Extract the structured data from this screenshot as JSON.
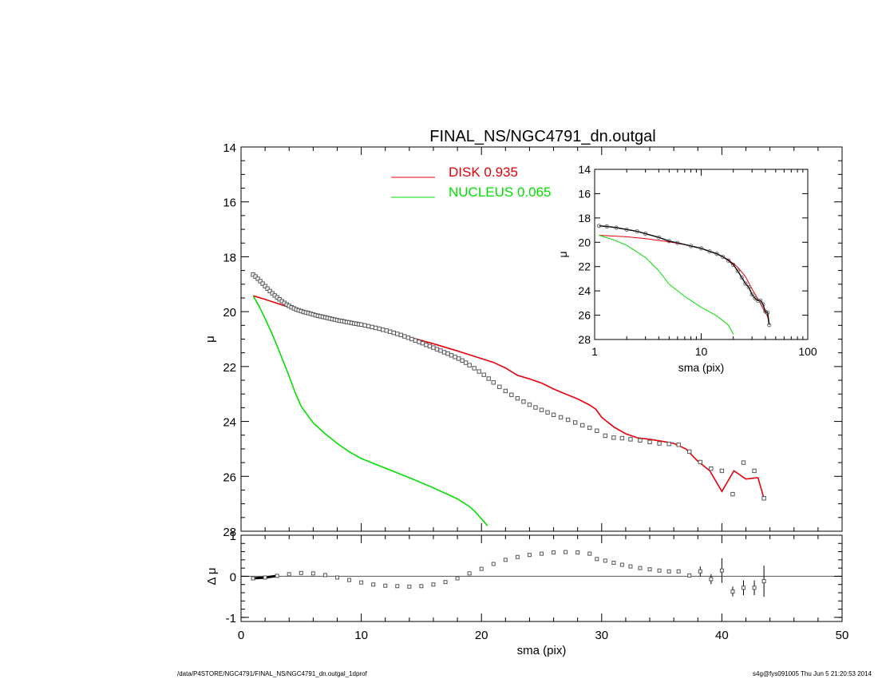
{
  "title": "FINAL_NS/NGC4791_dn.outgal",
  "footer_left": "/data/P4STORE/NGC4791/FINAL_NS/NGC4791_dn.outgal_1dprof",
  "footer_right": "s4g@fys091005  Thu Jun  5 21:20:53 2014",
  "colors": {
    "disk": "#e8000b",
    "nucleus": "#00e000",
    "data": "#555555",
    "axis": "#000000"
  },
  "legend": [
    {
      "label": "DISK  0.935",
      "color": "#e8000b"
    },
    {
      "label": "NUCLEUS  0.065",
      "color": "#00e000"
    }
  ],
  "chart_data": [
    {
      "id": "main",
      "type": "scatter",
      "ylabel": "μ",
      "xlim": [
        0,
        50
      ],
      "ylim": [
        14,
        28
      ],
      "y_inverted": true,
      "yticks": [
        "14",
        "16",
        "18",
        "20",
        "22",
        "24",
        "26",
        "28"
      ],
      "series": [
        {
          "name": "data",
          "x": [
            1.0,
            1.2,
            1.4,
            1.6,
            1.8,
            2.0,
            2.2,
            2.4,
            2.6,
            2.8,
            3.0,
            3.2,
            3.4,
            3.6,
            3.8,
            4.0,
            4.2,
            4.4,
            4.6,
            4.8,
            5.0,
            5.2,
            5.4,
            5.6,
            5.8,
            6.0,
            6.2,
            6.4,
            6.6,
            6.8,
            7.0,
            7.2,
            7.4,
            7.6,
            7.8,
            8.0,
            8.2,
            8.4,
            8.6,
            8.8,
            9.0,
            9.2,
            9.4,
            9.6,
            9.8,
            10.0,
            10.3,
            10.6,
            10.9,
            11.2,
            11.5,
            11.8,
            12.1,
            12.4,
            12.7,
            13.0,
            13.3,
            13.6,
            13.9,
            14.2,
            14.5,
            14.8,
            15.1,
            15.4,
            15.7,
            16.0,
            16.3,
            16.6,
            16.9,
            17.2,
            17.5,
            17.8,
            18.1,
            18.4,
            18.7,
            19.0,
            19.4,
            19.8,
            20.2,
            20.6,
            21.0,
            21.5,
            22.0,
            22.5,
            23.0,
            23.5,
            24.0,
            24.5,
            25.0,
            25.5,
            26.0,
            26.6,
            27.2,
            27.8,
            28.4,
            29.0,
            29.6,
            30.3,
            31.0,
            31.7,
            32.4,
            33.2,
            34.0,
            34.8,
            35.6,
            36.4,
            37.3,
            38.2,
            39.1,
            40.0,
            40.9,
            41.8,
            42.7,
            43.5
          ],
          "y": [
            18.65,
            18.72,
            18.8,
            18.89,
            18.98,
            19.07,
            19.16,
            19.25,
            19.33,
            19.41,
            19.48,
            19.55,
            19.62,
            19.68,
            19.74,
            19.79,
            19.84,
            19.88,
            19.92,
            19.95,
            19.98,
            20.01,
            20.03,
            20.05,
            20.08,
            20.1,
            20.13,
            20.15,
            20.17,
            20.19,
            20.21,
            20.23,
            20.25,
            20.27,
            20.29,
            20.31,
            20.33,
            20.34,
            20.36,
            20.38,
            20.39,
            20.41,
            20.43,
            20.44,
            20.46,
            20.47,
            20.5,
            20.53,
            20.56,
            20.59,
            20.62,
            20.66,
            20.69,
            20.73,
            20.77,
            20.81,
            20.85,
            20.9,
            20.95,
            21.0,
            21.05,
            21.1,
            21.15,
            21.21,
            21.26,
            21.31,
            21.37,
            21.42,
            21.48,
            21.53,
            21.59,
            21.65,
            21.71,
            21.78,
            21.86,
            21.95,
            22.06,
            22.18,
            22.3,
            22.44,
            22.58,
            22.74,
            22.89,
            23.03,
            23.16,
            23.28,
            23.39,
            23.49,
            23.58,
            23.67,
            23.76,
            23.85,
            23.94,
            24.04,
            24.14,
            24.23,
            24.34,
            24.52,
            24.59,
            24.61,
            24.65,
            24.69,
            24.75,
            24.8,
            24.82,
            24.85,
            25.1,
            25.48,
            25.72,
            25.8,
            26.65,
            25.5,
            25.8,
            26.8
          ]
        },
        {
          "name": "DISK  0.935",
          "x": [
            1.0,
            2.0,
            3.0,
            4.0,
            5.0,
            6.0,
            7.0,
            8.0,
            9.0,
            10.0,
            11.0,
            12.0,
            13.0,
            14.0,
            15.0,
            16.0,
            17.0,
            18.0,
            19.0,
            20.0,
            21.0,
            22.0,
            23.0,
            24.0,
            25.0,
            26.0,
            27.0,
            28.0,
            29.0,
            29.5,
            30.0,
            31.0,
            32.0,
            33.0,
            34.0,
            35.0,
            36.0,
            37.0,
            38.0,
            39.0,
            40.0,
            41.0,
            42.0,
            43.0,
            43.5
          ],
          "y": [
            19.42,
            19.55,
            19.7,
            19.84,
            19.96,
            20.08,
            20.2,
            20.3,
            20.4,
            20.5,
            20.6,
            20.71,
            20.82,
            20.93,
            21.05,
            21.17,
            21.3,
            21.43,
            21.57,
            21.71,
            21.85,
            22.05,
            22.32,
            22.45,
            22.6,
            22.82,
            23.0,
            23.18,
            23.4,
            23.55,
            23.85,
            24.2,
            24.45,
            24.6,
            24.65,
            24.72,
            24.8,
            25.0,
            25.45,
            25.8,
            26.55,
            25.8,
            26.1,
            26.05,
            26.8
          ]
        },
        {
          "name": "NUCLEUS  0.065",
          "x": [
            1.0,
            1.5,
            2.0,
            2.5,
            3.0,
            3.5,
            4.0,
            4.5,
            5.0,
            6.0,
            7.0,
            8.0,
            9.0,
            10.0,
            12.0,
            14.0,
            16.0,
            18.0,
            19.0,
            19.5,
            20.0,
            20.5
          ],
          "y": [
            19.42,
            19.8,
            20.25,
            20.72,
            21.25,
            21.8,
            22.35,
            22.95,
            23.45,
            24.05,
            24.45,
            24.8,
            25.1,
            25.35,
            25.7,
            26.05,
            26.42,
            26.82,
            27.1,
            27.3,
            27.55,
            27.8
          ]
        }
      ]
    },
    {
      "id": "residual",
      "type": "scatter",
      "xlabel": "sma (pix)",
      "ylabel": "Δ μ",
      "xlim": [
        0,
        50
      ],
      "ylim": [
        -1.1,
        1.0
      ],
      "xticks": [
        "0",
        "10",
        "20",
        "30",
        "40",
        "50"
      ],
      "yticks": [
        "1",
        "0",
        "-1"
      ],
      "series": [
        {
          "name": "residual",
          "x": [
            1.0,
            2.0,
            3.0,
            4.0,
            5.0,
            6.0,
            7.0,
            8.0,
            9.0,
            10.0,
            11.0,
            12.0,
            13.0,
            14.0,
            15.0,
            16.0,
            17.0,
            18.0,
            19.0,
            20.0,
            21.0,
            22.0,
            23.0,
            24.0,
            25.0,
            26.0,
            27.0,
            28.0,
            29.0,
            29.6,
            30.3,
            31.0,
            31.7,
            32.4,
            33.2,
            34.0,
            34.8,
            35.6,
            36.4,
            37.3,
            38.2,
            39.1,
            40.0,
            40.9,
            41.8,
            42.7,
            43.5
          ],
          "y": [
            -0.05,
            -0.03,
            0.01,
            0.05,
            0.08,
            0.07,
            0.03,
            -0.03,
            -0.09,
            -0.15,
            -0.2,
            -0.23,
            -0.24,
            -0.25,
            -0.24,
            -0.2,
            -0.14,
            -0.05,
            0.07,
            0.18,
            0.3,
            0.4,
            0.47,
            0.52,
            0.55,
            0.58,
            0.59,
            0.58,
            0.55,
            0.42,
            0.38,
            0.33,
            0.28,
            0.24,
            0.2,
            0.17,
            0.14,
            0.12,
            0.12,
            0.02,
            0.12,
            -0.07,
            0.14,
            -0.37,
            -0.28,
            -0.28,
            -0.12
          ],
          "yerr": [
            0,
            0,
            0,
            0,
            0,
            0,
            0,
            0,
            0,
            0,
            0,
            0,
            0,
            0,
            0,
            0,
            0,
            0,
            0,
            0,
            0,
            0,
            0,
            0,
            0,
            0,
            0,
            0,
            0,
            0,
            0,
            0,
            0,
            0,
            0,
            0,
            0,
            0,
            0,
            0,
            0.12,
            0.12,
            0.3,
            0.12,
            0.18,
            0.18,
            0.38
          ]
        }
      ]
    },
    {
      "id": "inset",
      "type": "line",
      "xscale": "log",
      "xlabel": "sma (pix)",
      "ylabel": "μ",
      "xlim": [
        1,
        100
      ],
      "ylim": [
        14,
        28
      ],
      "xticks": [
        "1",
        "10",
        "100"
      ],
      "yticks": [
        "14",
        "16",
        "18",
        "20",
        "22",
        "24",
        "26",
        "28"
      ],
      "series": [
        {
          "name": "data",
          "x": [
            1.1,
            1.3,
            1.6,
            2.0,
            2.5,
            3.0,
            4.0,
            5.0,
            6.0,
            8.0,
            10.0,
            12.0,
            14.0,
            16.0,
            18.0,
            20.0,
            22.0,
            24.0,
            26.0,
            28.0,
            30.0,
            32.0,
            34.0,
            36.0,
            38.0,
            40.0,
            42.0,
            43.5
          ],
          "y": [
            18.65,
            18.7,
            18.8,
            18.95,
            19.1,
            19.3,
            19.6,
            19.9,
            20.05,
            20.3,
            20.5,
            20.75,
            20.95,
            21.2,
            21.5,
            21.85,
            22.35,
            22.9,
            23.4,
            23.7,
            24.3,
            24.6,
            24.8,
            24.8,
            25.1,
            25.7,
            25.8,
            26.8
          ]
        },
        {
          "name": "DISK  0.935",
          "x": [
            1.1,
            2.0,
            3.0,
            5.0,
            7.0,
            10.0,
            14.0,
            18.0,
            22.0,
            26.0,
            30.0,
            34.0,
            38.0,
            42.0,
            43.5
          ],
          "y": [
            19.42,
            19.55,
            19.7,
            19.96,
            20.2,
            20.5,
            20.93,
            21.43,
            22.05,
            22.82,
            23.85,
            24.65,
            25.45,
            26.1,
            26.8
          ]
        },
        {
          "name": "NUCLEUS  0.065",
          "x": [
            1.1,
            1.5,
            2.0,
            3.0,
            4.0,
            5.0,
            7.0,
            10.0,
            14.0,
            18.0,
            20.0
          ],
          "y": [
            19.42,
            19.8,
            20.25,
            21.25,
            22.35,
            23.45,
            24.45,
            25.35,
            26.05,
            26.82,
            27.55
          ]
        }
      ]
    }
  ]
}
